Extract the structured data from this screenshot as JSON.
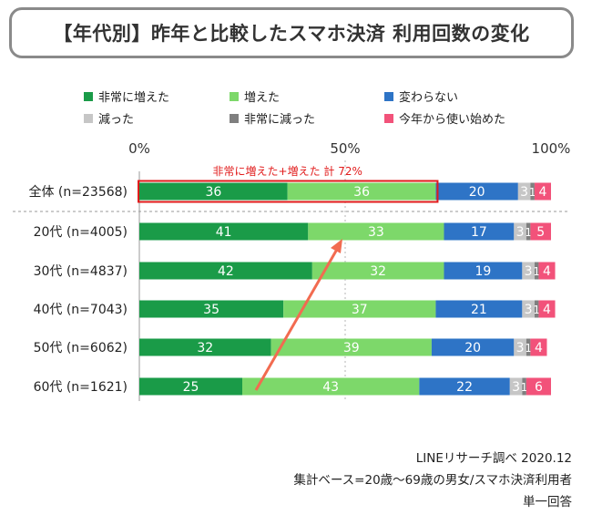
{
  "title": "【年代別】昨年と比較したスマホ決済 利用回数の変化",
  "colors": {
    "very_increased": "#1a9b48",
    "increased": "#7dd86a",
    "unchanged": "#2e74c6",
    "decreased": "#c6c6c6",
    "very_decreased": "#7f7f7f",
    "started": "#f2527a",
    "highlight_box": "#e11b1b",
    "arrow": "#f26b50"
  },
  "annotation": "非常に増えた+増えた 計 72%",
  "footer": {
    "source": "LINEリサーチ調べ 2020.12",
    "base": "集計ベース=20歳～69歳の男女/スマホ決済利用者",
    "answer": "単一回答"
  },
  "chart_data": {
    "type": "bar",
    "orientation": "horizontal",
    "stacked": true,
    "percent_scale": true,
    "xlim": [
      0,
      100
    ],
    "x_ticks": [
      "0%",
      "50%",
      "100%"
    ],
    "categories": [
      "全体 (n=23568)",
      "20代 (n=4005)",
      "30代 (n=4837)",
      "40代 (n=7043)",
      "50代 (n=6062)",
      "60代 (n=1621)"
    ],
    "series": [
      {
        "name": "非常に増えた",
        "color_key": "very_increased",
        "values": [
          36,
          41,
          42,
          35,
          32,
          25
        ]
      },
      {
        "name": "増えた",
        "color_key": "increased",
        "values": [
          36,
          33,
          32,
          37,
          39,
          43
        ]
      },
      {
        "name": "変わらない",
        "color_key": "unchanged",
        "values": [
          20,
          17,
          19,
          21,
          20,
          22
        ]
      },
      {
        "name": "減った",
        "color_key": "decreased",
        "values": [
          3,
          3,
          3,
          3,
          3,
          3
        ]
      },
      {
        "name": "非常に減った",
        "color_key": "very_decreased",
        "values": [
          1,
          1,
          1,
          1,
          1,
          1
        ]
      },
      {
        "name": "今年から使い始めた",
        "color_key": "started",
        "values": [
          4,
          5,
          4,
          4,
          4,
          6
        ]
      }
    ],
    "legend_position": "top",
    "grid": "vertical dotted at 50%"
  }
}
